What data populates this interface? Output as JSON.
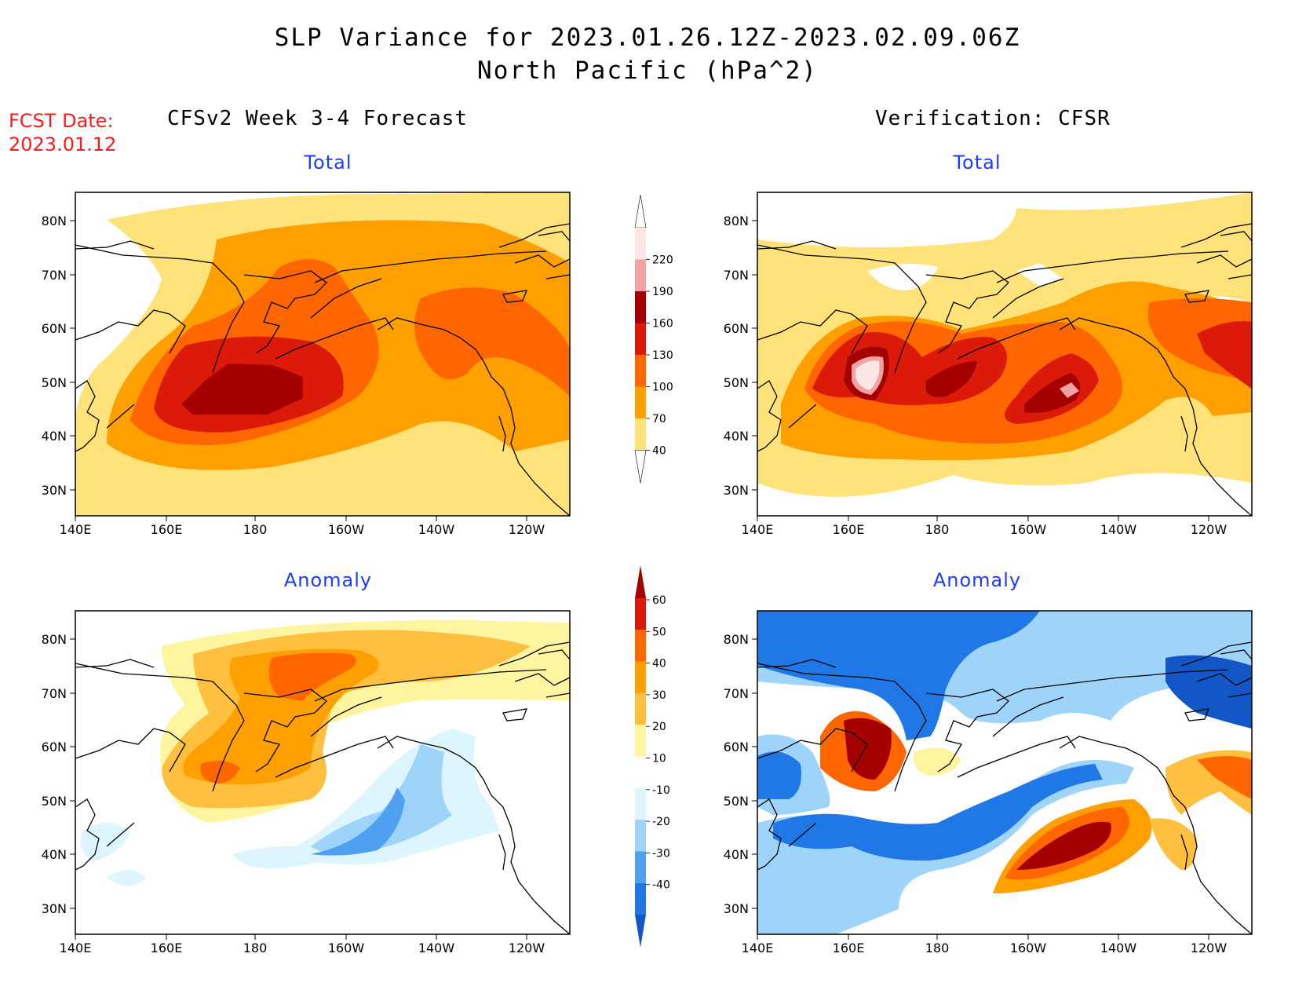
{
  "title": {
    "line1": "SLP Variance for 2023.01.26.12Z-2023.02.09.06Z",
    "line2": "North Pacific (hPa^2)"
  },
  "fcst_date": {
    "label": "FCST Date:",
    "value": "2023.01.12"
  },
  "columns": {
    "left": "CFSv2 Week 3-4 Forecast",
    "right": "Verification: CFSR"
  },
  "panels": [
    {
      "id": "fcst-total",
      "subtitle": "Total"
    },
    {
      "id": "cfsr-total",
      "subtitle": "Total"
    },
    {
      "id": "fcst-anomaly",
      "subtitle": "Anomaly"
    },
    {
      "id": "cfsr-anomaly",
      "subtitle": "Anomaly"
    }
  ],
  "axes": {
    "lon_labels": [
      "140E",
      "160E",
      "180",
      "160W",
      "140W",
      "120W"
    ],
    "lat_labels": [
      "80N",
      "70N",
      "60N",
      "50N",
      "40N",
      "30N"
    ]
  },
  "colorbars": {
    "total": {
      "labels": [
        "220",
        "190",
        "160",
        "130",
        "100",
        "70",
        "40"
      ],
      "colors": [
        "#ffe6e6",
        "#f2a2a2",
        "#a50000",
        "#db1a0a",
        "#ff6600",
        "#ffa000",
        "#ffe37a"
      ]
    },
    "anomaly": {
      "labels": [
        "60",
        "50",
        "40",
        "30",
        "20",
        "10",
        "-10",
        "-20",
        "-30",
        "-40"
      ],
      "colors": [
        "#a50000",
        "#db1a0a",
        "#ff6600",
        "#ffa000",
        "#ffc040",
        "#fff5a0",
        "#ffffff",
        "#ddf5ff",
        "#9fd4fa",
        "#4fa0f0",
        "#1f78e6",
        "#1256c8"
      ]
    }
  }
}
